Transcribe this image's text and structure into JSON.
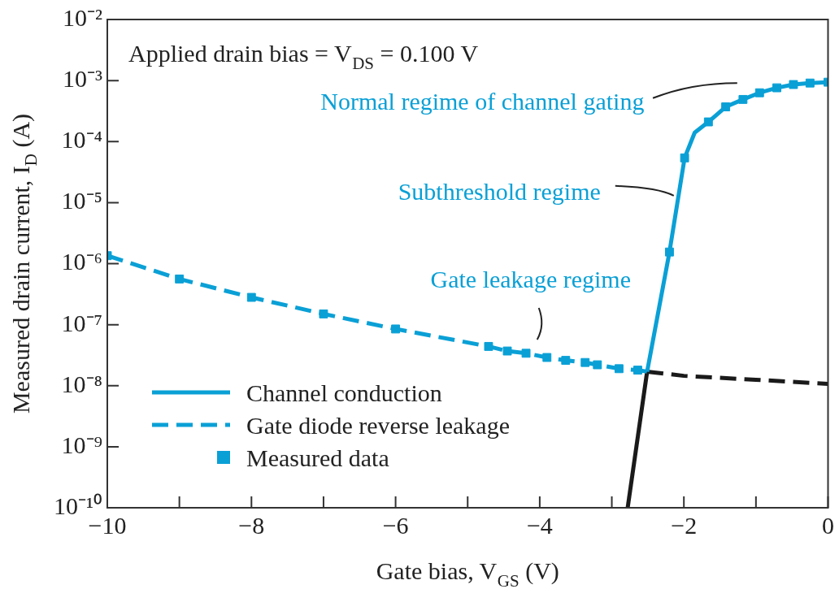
{
  "chart_data": {
    "type": "line",
    "xlabel": "Gate bias, V$_{GS}$ (V)",
    "ylabel": "Measured drain current, I$_{D}$ (A)",
    "xlim": [
      -10,
      0
    ],
    "xticks": [
      -10,
      {
        "value": -9,
        "label": null
      },
      -8,
      {
        "value": -7,
        "label": null
      },
      -6,
      {
        "value": -5,
        "label": null
      },
      -4,
      {
        "value": -3,
        "label": null
      },
      -2,
      {
        "value": -1,
        "label": null
      },
      0
    ],
    "ylim": [
      1e-10,
      0.01
    ],
    "yticks": [
      {
        "value": 1e-10,
        "label": "10⁻¹⁰"
      },
      {
        "value": 1e-09,
        "label": "10⁻⁹"
      },
      {
        "value": 1e-08,
        "label": "10⁻⁸"
      },
      {
        "value": 1e-07,
        "label": "10⁻⁷"
      },
      {
        "value": 1e-06,
        "label": "10⁻⁶"
      },
      {
        "value": 1e-05,
        "label": "10⁻⁵"
      },
      {
        "value": 0.0001,
        "label": "10⁻⁴"
      },
      {
        "value": 0.001,
        "label": "10⁻³"
      },
      {
        "value": 0.01,
        "label": "10⁻²"
      }
    ],
    "log": "y",
    "legend": "bottom left",
    "series": [
      {
        "name": "Channel conduction",
        "line_style": "solid",
        "color": "#0aa0d6",
        "x": [
          -2.51,
          -2.2,
          -1.99,
          -1.85,
          -1.66,
          -1.42,
          -1.18,
          -0.95,
          -0.71,
          -0.48,
          -0.25,
          0
        ],
        "values": [
          1.7e-08,
          1.55e-06,
          5.4e-05,
          0.00014,
          0.00021,
          0.00037,
          0.00049,
          0.00063,
          0.00076,
          0.00086,
          0.00091,
          0.00094
        ]
      },
      {
        "name": "Gate diode reverse leakage",
        "line_style": "dashed",
        "color": "#0aa0d6",
        "x": [
          -10,
          -9,
          -8,
          -7,
          -6,
          -4.71,
          -4.45,
          -4.19,
          -3.9,
          -3.64,
          -3.37,
          -3.2,
          -2.9,
          -2.64,
          -2.51
        ],
        "values": [
          1.35e-06,
          5.6e-07,
          2.8e-07,
          1.5e-07,
          8.5e-08,
          4.4e-08,
          3.7e-08,
          3.4e-08,
          2.9e-08,
          2.6e-08,
          2.4e-08,
          2.2e-08,
          1.9e-08,
          1.8e-08,
          1.7e-08
        ]
      },
      {
        "name": "Measured data",
        "type": "scatter",
        "marker": "square",
        "color": "#0aa0d6",
        "x": [
          -10,
          -9,
          -8,
          -7,
          -6,
          -4.71,
          -4.45,
          -4.19,
          -3.9,
          -3.64,
          -3.37,
          -3.2,
          -2.9,
          -2.64,
          -2.2,
          -1.99,
          -1.66,
          -1.42,
          -1.18,
          -0.95,
          -0.71,
          -0.48,
          -0.25,
          0
        ],
        "values": [
          1.35e-06,
          5.6e-07,
          2.8e-07,
          1.5e-07,
          8.5e-08,
          4.4e-08,
          3.7e-08,
          3.4e-08,
          2.9e-08,
          2.6e-08,
          2.4e-08,
          2.2e-08,
          1.9e-08,
          1.8e-08,
          1.55e-06,
          5.4e-05,
          0.00021,
          0.00037,
          0.00049,
          0.00063,
          0.00076,
          0.00086,
          0.00091,
          0.00094
        ]
      },
      {
        "line_style": "solid",
        "color": "#1a1a1a",
        "x": [
          -2.78,
          -2.51
        ],
        "values": [
          1e-10,
          1.7e-08
        ]
      },
      {
        "line_style": "dashed",
        "color": "#1a1a1a",
        "x": [
          -2.51,
          -2,
          -1,
          0
        ],
        "values": [
          1.7e-08,
          1.45e-08,
          1.25e-08,
          1.07e-08
        ]
      }
    ],
    "annotations": [
      "Applied drain bias = V$_{DS}$ = 0.100 V",
      "Normal regime of channel gating",
      {
        "text": "Subthreshold regime",
        "x": -2.14,
        "y": 1.3e-05
      },
      {
        "text": "Gate leakage regime",
        "x": -3.9,
        "y": 2.9e-08
      }
    ]
  }
}
